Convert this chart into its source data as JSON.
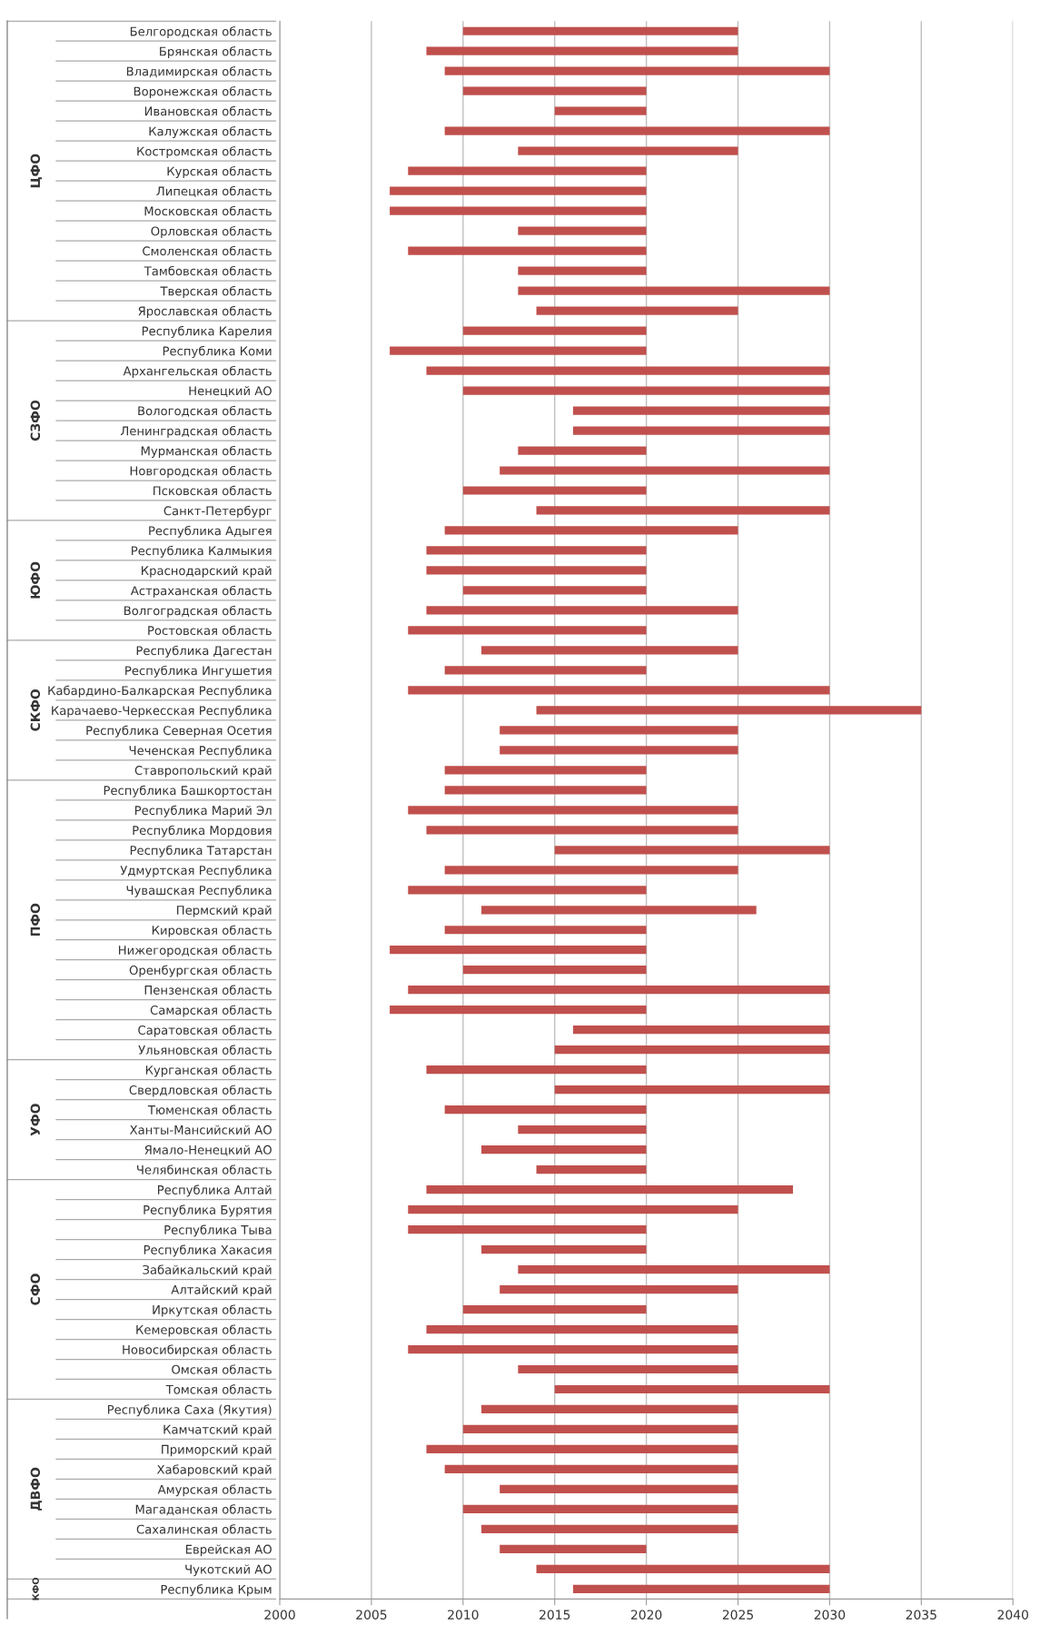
{
  "chart_data": {
    "type": "bar",
    "orientation": "horizontal",
    "categories": [
      "Белгородская область",
      "Брянская область",
      "Владимирская область",
      "Воронежская область",
      "Ивановская область",
      "Калужская область",
      "Костромская область",
      "Курская область",
      "Липецкая область",
      "Московская область",
      "Орловская область",
      "Смоленская область",
      "Тамбовская область",
      "Тверская область",
      "Ярославская область",
      "Республика Карелия",
      "Республика Коми",
      "Архангельская область",
      "Ненецкий АО",
      "Вологодская область",
      "Ленинградская область",
      "Мурманская область",
      "Новгородская область",
      "Псковская область",
      "Санкт-Петербург",
      "Республика Адыгея",
      "Республика Калмыкия",
      "Краснодарский край",
      "Астраханская область",
      "Волгоградская область",
      "Ростовская область",
      "Республика Дагестан",
      "Республика Ингушетия",
      "Кабардино-Балкарская Республика",
      "Карачаево-Черкесская Республика",
      "Республика Северная Осетия",
      "Чеченская Республика",
      "Ставропольский край",
      "Республика Башкортостан",
      "Республика Марий Эл",
      "Республика Мордовия",
      "Республика Татарстан",
      "Удмуртская Республика",
      "Чувашская Республика",
      "Пермский край",
      "Кировская область",
      "Нижегородская область",
      "Оренбургская область",
      "Пензенская область",
      "Самарская область",
      "Саратовская область",
      "Ульяновская область",
      "Курганская область",
      "Свердловская область",
      "Тюменская область",
      "Ханты-Мансийский АО",
      "Ямало-Ненецкий АО",
      "Челябинская область",
      "Республика Алтай",
      "Республика Бурятия",
      "Республика Тыва",
      "Республика Хакасия",
      "Забайкальский край",
      "Алтайский край",
      "Иркутская область",
      "Кемеровская область",
      "Новосибирская область",
      "Омская область",
      "Томская область",
      "Республика Саха (Якутия)",
      "Камчатский край",
      "Приморский край",
      "Хабаровский край",
      "Амурская область",
      "Магаданская область",
      "Сахалинская область",
      "Еврейская АО",
      "Чукотский АО",
      "Республика Крым"
    ],
    "base": [
      2010,
      2008,
      2009,
      2010,
      2015,
      2009,
      2013,
      2007,
      2006,
      2006,
      2013,
      2007,
      2013,
      2013,
      2014,
      2010,
      2006,
      2008,
      2010,
      2016,
      2016,
      2013,
      2012,
      2010,
      2014,
      2009,
      2008,
      2008,
      2010,
      2008,
      2007,
      2011,
      2009,
      2007,
      2014,
      2012,
      2012,
      2009,
      2009,
      2007,
      2008,
      2015,
      2009,
      2007,
      2011,
      2009,
      2006,
      2010,
      2007,
      2006,
      2016,
      2015,
      2008,
      2015,
      2009,
      2013,
      2011,
      2014,
      2008,
      2007,
      2007,
      2011,
      2013,
      2012,
      2010,
      2008,
      2007,
      2013,
      2015,
      2011,
      2010,
      2008,
      2009,
      2012,
      2010,
      2011,
      2012,
      2014,
      2016
    ],
    "values": [
      15,
      17,
      21,
      10,
      5,
      21,
      12,
      13,
      14,
      14,
      7,
      13,
      7,
      17,
      11,
      10,
      14,
      22,
      20,
      14,
      14,
      7,
      18,
      10,
      16,
      16,
      12,
      12,
      10,
      17,
      13,
      14,
      11,
      23,
      21,
      13,
      13,
      11,
      11,
      18,
      17,
      15,
      16,
      13,
      15,
      11,
      14,
      10,
      23,
      14,
      14,
      15,
      12,
      15,
      11,
      7,
      9,
      6,
      20,
      18,
      13,
      9,
      17,
      13,
      10,
      17,
      18,
      12,
      15,
      14,
      15,
      17,
      16,
      13,
      15,
      14,
      8,
      16,
      14
    ],
    "color": "#c0504d",
    "xlim": [
      2000,
      2040
    ],
    "xticks": [
      2000,
      2005,
      2010,
      2015,
      2020,
      2025,
      2030,
      2035,
      2040
    ],
    "grid": "x",
    "annotations": [
      "ЦФО",
      "СЗФО",
      "ЮФО",
      "СКФО",
      "ПФО",
      "УФО",
      "СФО",
      "ДВФО",
      "КФО"
    ]
  }
}
